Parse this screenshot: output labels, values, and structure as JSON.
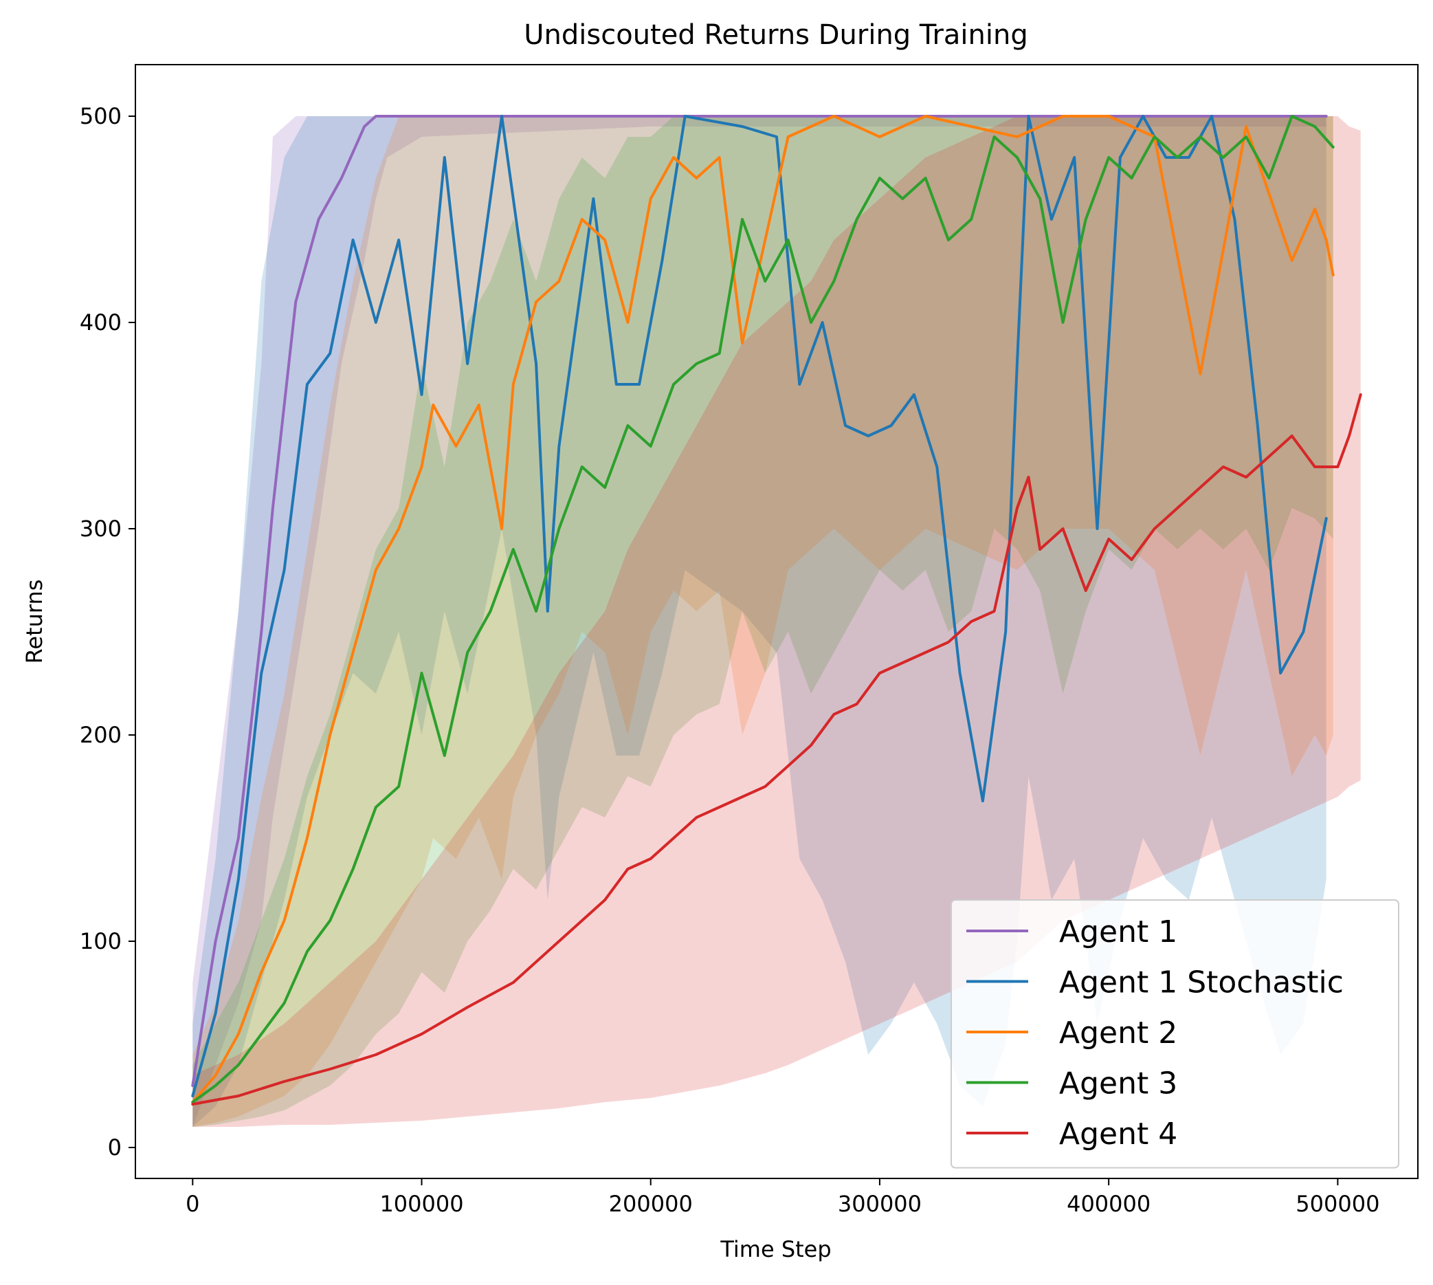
{
  "chart_data": {
    "type": "line",
    "title": "Undiscouted Returns During Training",
    "xlabel": "Time Step",
    "ylabel": "Returns",
    "xlim": [
      -25000,
      535000
    ],
    "ylim": [
      -15,
      525
    ],
    "xticks": [
      0,
      100000,
      200000,
      300000,
      400000,
      500000
    ],
    "xtick_labels": [
      "0",
      "100000",
      "200000",
      "300000",
      "400000",
      "500000"
    ],
    "yticks": [
      0,
      100,
      200,
      300,
      400,
      500
    ],
    "ytick_labels": [
      "0",
      "100",
      "200",
      "300",
      "400",
      "500"
    ],
    "grid": false,
    "legend_position": "lower-right",
    "shaded_band": "min-max range across runs",
    "series": [
      {
        "name": "Agent 1",
        "color": "#9467bd",
        "band_alpha": 0.22,
        "x": [
          0,
          10000,
          20000,
          30000,
          35000,
          45000,
          55000,
          65000,
          75000,
          80000,
          85000,
          100000,
          200000,
          300000,
          400000,
          495000
        ],
        "y": [
          30,
          100,
          150,
          250,
          310,
          410,
          450,
          470,
          495,
          500,
          500,
          500,
          500,
          500,
          500,
          500
        ],
        "lower": [
          10,
          40,
          70,
          110,
          160,
          230,
          300,
          380,
          430,
          460,
          480,
          490,
          495,
          495,
          495,
          495
        ],
        "upper": [
          80,
          170,
          260,
          380,
          490,
          500,
          500,
          500,
          500,
          500,
          500,
          500,
          500,
          500,
          500,
          500
        ]
      },
      {
        "name": "Agent 1 Stochastic",
        "color": "#1f77b4",
        "band_alpha": 0.2,
        "x": [
          0,
          10000,
          20000,
          30000,
          40000,
          50000,
          60000,
          70000,
          80000,
          90000,
          100000,
          110000,
          120000,
          135000,
          150000,
          155000,
          160000,
          175000,
          185000,
          195000,
          205000,
          215000,
          240000,
          255000,
          265000,
          275000,
          285000,
          295000,
          305000,
          315000,
          325000,
          335000,
          345000,
          355000,
          360000,
          365000,
          375000,
          385000,
          395000,
          405000,
          415000,
          425000,
          435000,
          445000,
          455000,
          465000,
          475000,
          485000,
          495000
        ],
        "y": [
          25,
          65,
          130,
          230,
          280,
          370,
          385,
          440,
          400,
          440,
          365,
          480,
          380,
          500,
          380,
          260,
          340,
          460,
          370,
          370,
          430,
          500,
          495,
          490,
          370,
          400,
          350,
          345,
          350,
          365,
          330,
          230,
          168,
          250,
          380,
          500,
          450,
          480,
          300,
          480,
          500,
          480,
          480,
          500,
          450,
          350,
          230,
          250,
          305
        ],
        "lower": [
          10,
          20,
          40,
          80,
          120,
          170,
          200,
          230,
          220,
          250,
          200,
          260,
          220,
          300,
          200,
          120,
          170,
          240,
          190,
          190,
          230,
          280,
          260,
          240,
          140,
          120,
          90,
          45,
          60,
          80,
          60,
          30,
          20,
          50,
          100,
          180,
          120,
          140,
          60,
          110,
          150,
          130,
          120,
          160,
          120,
          80,
          45,
          60,
          130
        ],
        "upper": [
          60,
          140,
          260,
          420,
          480,
          500,
          500,
          500,
          500,
          500,
          500,
          500,
          500,
          500,
          500,
          500,
          500,
          500,
          500,
          500,
          500,
          500,
          500,
          500,
          500,
          500,
          500,
          500,
          500,
          500,
          500,
          500,
          500,
          500,
          500,
          500,
          500,
          500,
          500,
          500,
          500,
          500,
          500,
          500,
          500,
          500,
          500,
          500,
          500
        ]
      },
      {
        "name": "Agent 2",
        "color": "#ff7f0e",
        "band_alpha": 0.2,
        "x": [
          0,
          10000,
          20000,
          30000,
          40000,
          50000,
          60000,
          70000,
          80000,
          90000,
          100000,
          105000,
          115000,
          125000,
          135000,
          140000,
          150000,
          160000,
          170000,
          180000,
          190000,
          200000,
          210000,
          220000,
          230000,
          240000,
          250000,
          260000,
          280000,
          300000,
          320000,
          340000,
          360000,
          380000,
          400000,
          420000,
          440000,
          460000,
          480000,
          490000,
          495000,
          498000
        ],
        "y": [
          22,
          35,
          55,
          85,
          110,
          150,
          200,
          240,
          280,
          300,
          330,
          360,
          340,
          360,
          300,
          370,
          410,
          420,
          450,
          440,
          400,
          460,
          480,
          470,
          480,
          390,
          440,
          490,
          500,
          490,
          500,
          495,
          490,
          500,
          500,
          490,
          375,
          495,
          430,
          455,
          440,
          423
        ],
        "lower": [
          10,
          12,
          15,
          20,
          25,
          35,
          50,
          70,
          90,
          110,
          130,
          150,
          140,
          160,
          130,
          170,
          200,
          220,
          250,
          240,
          200,
          250,
          270,
          260,
          270,
          200,
          230,
          280,
          300,
          280,
          300,
          290,
          280,
          300,
          300,
          280,
          190,
          280,
          180,
          200,
          190,
          200
        ],
        "upper": [
          45,
          70,
          110,
          170,
          220,
          290,
          360,
          420,
          470,
          500,
          500,
          500,
          500,
          500,
          500,
          500,
          500,
          500,
          500,
          500,
          500,
          500,
          500,
          500,
          500,
          500,
          500,
          500,
          500,
          500,
          500,
          500,
          500,
          500,
          500,
          500,
          500,
          500,
          500,
          500,
          500,
          500
        ]
      },
      {
        "name": "Agent 3",
        "color": "#2ca02c",
        "band_alpha": 0.2,
        "x": [
          0,
          10000,
          20000,
          30000,
          40000,
          50000,
          60000,
          70000,
          80000,
          90000,
          100000,
          110000,
          120000,
          130000,
          140000,
          150000,
          160000,
          170000,
          180000,
          190000,
          200000,
          210000,
          220000,
          230000,
          240000,
          250000,
          260000,
          270000,
          280000,
          290000,
          300000,
          310000,
          320000,
          330000,
          340000,
          350000,
          360000,
          370000,
          380000,
          390000,
          400000,
          410000,
          420000,
          430000,
          440000,
          450000,
          460000,
          470000,
          480000,
          490000,
          498000
        ],
        "y": [
          22,
          30,
          40,
          55,
          70,
          95,
          110,
          135,
          165,
          175,
          230,
          190,
          240,
          260,
          290,
          260,
          300,
          330,
          320,
          350,
          340,
          370,
          380,
          385,
          450,
          420,
          440,
          400,
          420,
          450,
          470,
          460,
          470,
          440,
          450,
          490,
          480,
          460,
          400,
          450,
          480,
          470,
          490,
          480,
          490,
          480,
          490,
          470,
          500,
          495,
          485
        ],
        "lower": [
          10,
          11,
          13,
          15,
          18,
          24,
          30,
          40,
          55,
          65,
          85,
          75,
          100,
          115,
          135,
          125,
          145,
          165,
          160,
          180,
          175,
          200,
          210,
          215,
          260,
          230,
          250,
          220,
          240,
          260,
          280,
          270,
          280,
          250,
          260,
          300,
          290,
          270,
          220,
          260,
          290,
          280,
          300,
          290,
          300,
          290,
          300,
          280,
          310,
          305,
          295
        ],
        "upper": [
          40,
          60,
          80,
          110,
          140,
          180,
          210,
          250,
          290,
          310,
          380,
          330,
          400,
          420,
          450,
          420,
          460,
          480,
          470,
          490,
          490,
          500,
          500,
          500,
          500,
          500,
          500,
          500,
          500,
          500,
          500,
          500,
          500,
          500,
          500,
          500,
          500,
          500,
          500,
          500,
          500,
          500,
          500,
          500,
          500,
          500,
          500,
          500,
          500,
          500,
          500
        ]
      },
      {
        "name": "Agent 4",
        "color": "#d62728",
        "band_alpha": 0.2,
        "x": [
          0,
          20000,
          40000,
          60000,
          80000,
          100000,
          120000,
          140000,
          160000,
          180000,
          190000,
          200000,
          210000,
          220000,
          230000,
          240000,
          250000,
          260000,
          270000,
          280000,
          290000,
          300000,
          310000,
          320000,
          330000,
          340000,
          350000,
          360000,
          365000,
          370000,
          380000,
          390000,
          400000,
          410000,
          420000,
          430000,
          440000,
          450000,
          460000,
          470000,
          480000,
          490000,
          500000,
          505000,
          510000
        ],
        "y": [
          21,
          25,
          32,
          38,
          45,
          55,
          68,
          80,
          100,
          120,
          135,
          140,
          150,
          160,
          165,
          170,
          175,
          185,
          195,
          210,
          215,
          230,
          235,
          240,
          245,
          255,
          260,
          310,
          325,
          290,
          300,
          270,
          295,
          285,
          300,
          310,
          320,
          330,
          325,
          335,
          345,
          330,
          330,
          345,
          365
        ],
        "lower": [
          10,
          10,
          11,
          11,
          12,
          13,
          15,
          17,
          19,
          22,
          23,
          24,
          26,
          28,
          30,
          33,
          36,
          40,
          45,
          50,
          55,
          60,
          65,
          70,
          75,
          80,
          85,
          90,
          95,
          100,
          110,
          115,
          120,
          125,
          130,
          135,
          140,
          145,
          150,
          155,
          160,
          165,
          170,
          175,
          178
        ],
        "upper": [
          35,
          45,
          60,
          80,
          100,
          130,
          160,
          190,
          230,
          260,
          290,
          310,
          330,
          350,
          370,
          390,
          400,
          410,
          420,
          440,
          450,
          460,
          470,
          480,
          485,
          490,
          495,
          500,
          500,
          500,
          500,
          500,
          500,
          500,
          500,
          500,
          500,
          500,
          500,
          500,
          500,
          500,
          500,
          495,
          493
        ]
      }
    ]
  }
}
